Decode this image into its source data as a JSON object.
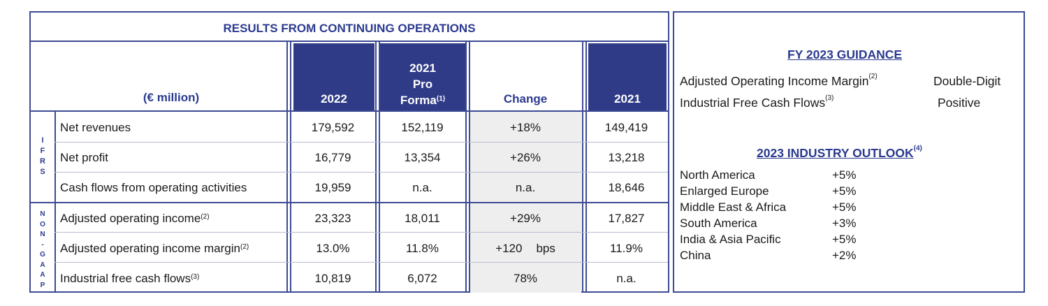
{
  "table": {
    "title": "RESULTS FROM CONTINUING OPERATIONS",
    "unit_label": "(€ million)",
    "col_2022": "2022",
    "col_2021pf_l1": "2021",
    "col_2021pf_l2": "Pro",
    "col_2021pf_l3": "Forma",
    "col_2021pf_sup": "(1)",
    "col_change": "Change",
    "col_2021": "2021",
    "group_ifrs": [
      "I",
      "F",
      "R",
      "S"
    ],
    "group_nongaap": [
      "N",
      "O",
      "N",
      "-",
      "G",
      "A",
      "A",
      "P"
    ],
    "rows": [
      {
        "label": "Net revenues",
        "sup": "",
        "v2022": "179,592",
        "v2021pf": "152,119",
        "change": "+18%",
        "change_unit": "",
        "v2021": "149,419"
      },
      {
        "label": "Net profit",
        "sup": "",
        "v2022": "16,779",
        "v2021pf": "13,354",
        "change": "+26%",
        "change_unit": "",
        "v2021": "13,218"
      },
      {
        "label": "Cash flows from operating activities",
        "sup": "",
        "v2022": "19,959",
        "v2021pf": "n.a.",
        "change": "n.a.",
        "change_unit": "",
        "v2021": "18,646"
      },
      {
        "label": "Adjusted operating income",
        "sup": "(2)",
        "v2022": "23,323",
        "v2021pf": "18,011",
        "change": "+29%",
        "change_unit": "",
        "v2021": "17,827"
      },
      {
        "label": "Adjusted operating income margin",
        "sup": "(2)",
        "v2022": "13.0%",
        "v2021pf": "11.8%",
        "change": "+120",
        "change_unit": "bps",
        "v2021": "11.9%"
      },
      {
        "label": "Industrial free cash flows",
        "sup": "(3)",
        "v2022": "10,819",
        "v2021pf": "6,072",
        "change": "78%",
        "change_unit": "",
        "v2021": "n.a."
      }
    ]
  },
  "guidance": {
    "title": "FY 2023 GUIDANCE",
    "items": [
      {
        "label": "Adjusted Operating Income Margin",
        "sup": "(2)",
        "value": "Double-Digit"
      },
      {
        "label": "Industrial Free Cash Flows",
        "sup": "(3)",
        "value": "Positive"
      }
    ]
  },
  "outlook": {
    "title": "2023 INDUSTRY OUTLOOK",
    "title_sup": "(4)",
    "items": [
      {
        "region": "North America",
        "value": "+5%"
      },
      {
        "region": "Enlarged Europe",
        "value": "+5%"
      },
      {
        "region": "Middle East & Africa",
        "value": "+5%"
      },
      {
        "region": "South America",
        "value": "+3%"
      },
      {
        "region": "India & Asia Pacific",
        "value": "+5%"
      },
      {
        "region": "China",
        "value": "+2%"
      }
    ]
  }
}
